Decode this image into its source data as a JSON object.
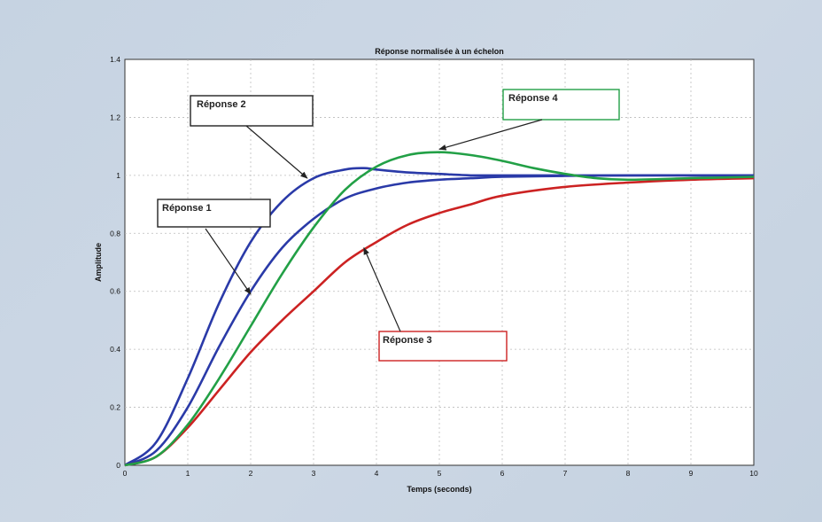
{
  "chart_data": {
    "type": "line",
    "title": "Réponse normalisée à un échelon",
    "xlabel": "Temps (seconds)",
    "ylabel": "Amplitude",
    "xlim": [
      0,
      10
    ],
    "ylim": [
      0,
      1.4
    ],
    "x_ticks": [
      "0",
      "1",
      "2",
      "3",
      "4",
      "5",
      "6",
      "7",
      "8",
      "9",
      "10"
    ],
    "y_ticks": [
      "0",
      "0.2",
      "0.4",
      "0.6",
      "0.8",
      "1",
      "1.2",
      "1.4"
    ],
    "grid": true,
    "series": [
      {
        "name": "Réponse 1",
        "color": "#2a3aa8",
        "x": [
          0,
          0.5,
          1,
          1.5,
          2,
          2.5,
          3,
          3.5,
          4,
          4.5,
          5,
          5.5,
          6,
          7,
          8,
          9,
          10
        ],
        "y": [
          0,
          0.05,
          0.2,
          0.41,
          0.6,
          0.75,
          0.85,
          0.92,
          0.955,
          0.975,
          0.985,
          0.99,
          0.995,
          0.998,
          1.0,
          1.0,
          1.0
        ]
      },
      {
        "name": "Réponse 2",
        "color": "#2a3aa8",
        "x": [
          0,
          0.5,
          1,
          1.5,
          2,
          2.5,
          3,
          3.5,
          3.8,
          4,
          4.5,
          5,
          5.5,
          6,
          7,
          8,
          9,
          10
        ],
        "y": [
          0,
          0.08,
          0.3,
          0.56,
          0.77,
          0.91,
          0.99,
          1.02,
          1.025,
          1.02,
          1.01,
          1.005,
          1.0,
          1.0,
          1.0,
          1.0,
          1.0,
          1.0
        ]
      },
      {
        "name": "Réponse 3",
        "color": "#cc2222",
        "x": [
          0,
          0.5,
          1,
          1.5,
          2,
          2.5,
          3,
          3.5,
          4,
          4.5,
          5,
          5.5,
          6,
          7,
          8,
          9,
          10
        ],
        "y": [
          0,
          0.03,
          0.13,
          0.26,
          0.39,
          0.5,
          0.6,
          0.7,
          0.77,
          0.83,
          0.87,
          0.9,
          0.93,
          0.96,
          0.975,
          0.985,
          0.99
        ]
      },
      {
        "name": "Réponse 4",
        "color": "#22a046",
        "x": [
          0,
          0.5,
          1,
          1.5,
          2,
          2.5,
          3,
          3.5,
          4,
          4.5,
          5,
          5.5,
          6,
          6.5,
          7,
          7.5,
          8,
          9,
          10
        ],
        "y": [
          0,
          0.03,
          0.14,
          0.3,
          0.48,
          0.66,
          0.82,
          0.95,
          1.03,
          1.07,
          1.08,
          1.07,
          1.05,
          1.025,
          1.005,
          0.99,
          0.985,
          0.99,
          0.995
        ]
      }
    ],
    "annotations": [
      {
        "text": "Réponse 1",
        "series": "Réponse 1",
        "x": 2.0,
        "y": 0.59,
        "color": "#222222"
      },
      {
        "text": "Réponse 2",
        "series": "Réponse 2",
        "x": 2.9,
        "y": 0.99,
        "color": "#222222"
      },
      {
        "text": "Réponse 3",
        "series": "Réponse 3",
        "x": 3.8,
        "y": 0.75,
        "color": "#cc2222"
      },
      {
        "text": "Réponse 4",
        "series": "Réponse 4",
        "x": 5.0,
        "y": 1.09,
        "color": "#22a046"
      }
    ]
  }
}
